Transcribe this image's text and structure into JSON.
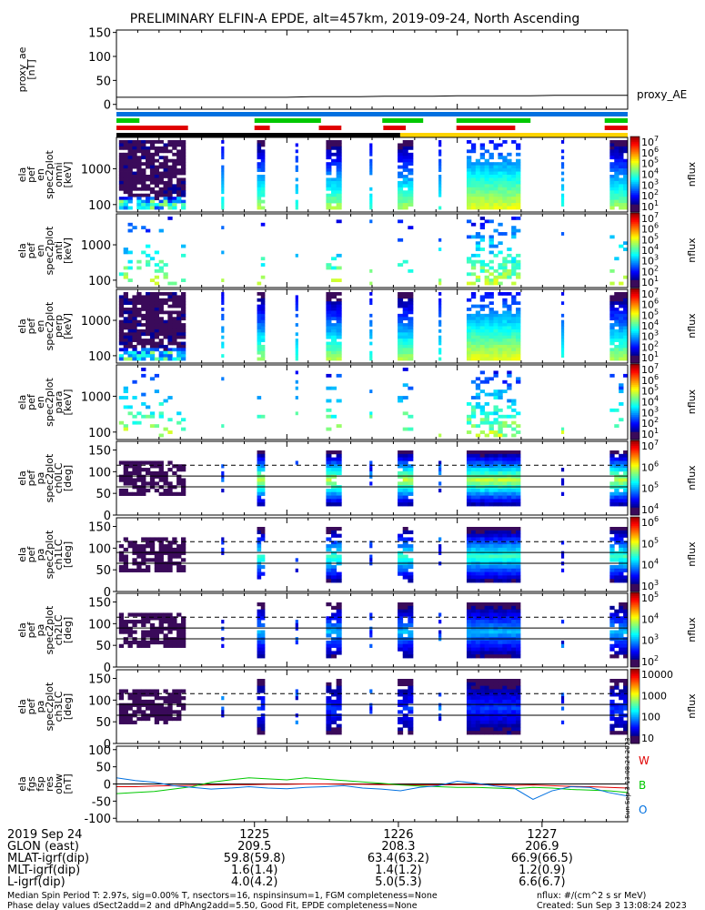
{
  "title": "PRELIMINARY ELFIN-A EPDE, alt=457km, 2019-09-24, North Ascending",
  "colors": {
    "blue": "#0070e0",
    "green": "#00c800",
    "red": "#e00000",
    "black": "#000000",
    "yellow": "#ffd400"
  },
  "chart_data": [
    {
      "type": "line",
      "name": "proxy_ae",
      "ylabel_lines": [
        "proxy_ae",
        "[nT]"
      ],
      "yticks": [
        "150",
        "100",
        "50",
        "0"
      ],
      "ylim": [
        -10,
        155
      ],
      "legend": "proxy_AE",
      "values": [
        15,
        15,
        15,
        15,
        15,
        15,
        15,
        15,
        16,
        16,
        16,
        17,
        17,
        17,
        18,
        18,
        18,
        18,
        19,
        19,
        19,
        19
      ]
    },
    {
      "type": "bars",
      "name": "status-bars",
      "rows": [
        {
          "color": "blue",
          "segments": [
            [
              0,
              1
            ]
          ]
        },
        {
          "color": "green",
          "segments": [
            [
              0,
              0.045
            ],
            [
              0.27,
              0.4
            ],
            [
              0.52,
              0.6
            ],
            [
              0.665,
              0.81
            ],
            [
              0.955,
              1
            ]
          ]
        },
        {
          "color": "red",
          "segments": [
            [
              0,
              0.14
            ],
            [
              0.27,
              0.3
            ],
            [
              0.396,
              0.44
            ],
            [
              0.522,
              0.566
            ],
            [
              0.665,
              0.78
            ],
            [
              0.955,
              1
            ]
          ]
        },
        {
          "segments": [
            [
              0,
              0.555,
              "black"
            ],
            [
              0.555,
              1,
              "yellow"
            ]
          ]
        }
      ]
    },
    {
      "type": "heatmap",
      "ylabel_lines": [
        "ela",
        "pef",
        "en",
        "spec2plot",
        "omni",
        "[keV]"
      ],
      "yticks": [
        "1000",
        "100"
      ],
      "cbar_ticks": [
        "10",
        "10",
        "10",
        "10",
        "10",
        "10",
        "10"
      ],
      "cbar_exps": [
        "7",
        "6",
        "5",
        "4",
        "3",
        "2",
        "1"
      ],
      "cbar_label": "nflux"
    },
    {
      "type": "heatmap",
      "ylabel_lines": [
        "ela",
        "pef",
        "en",
        "spec2plot",
        "anti",
        "[keV]"
      ],
      "yticks": [
        "1000",
        "100"
      ],
      "cbar_ticks": [
        "10",
        "10",
        "10",
        "10",
        "10",
        "10",
        "10"
      ],
      "cbar_exps": [
        "7",
        "6",
        "5",
        "4",
        "3",
        "2",
        "1"
      ],
      "cbar_label": "nflux"
    },
    {
      "type": "heatmap",
      "ylabel_lines": [
        "ela",
        "pef",
        "en",
        "spec2plot",
        "perp",
        "[keV]"
      ],
      "yticks": [
        "1000",
        "100"
      ],
      "cbar_ticks": [
        "10",
        "10",
        "10",
        "10",
        "10",
        "10",
        "10"
      ],
      "cbar_exps": [
        "7",
        "6",
        "5",
        "4",
        "3",
        "2",
        "1"
      ],
      "cbar_label": "nflux"
    },
    {
      "type": "heatmap",
      "ylabel_lines": [
        "ela",
        "pef",
        "en",
        "spec2plot",
        "para",
        "[keV]"
      ],
      "yticks": [
        "1000",
        "100"
      ],
      "cbar_ticks": [
        "10",
        "10",
        "10",
        "10",
        "10",
        "10",
        "10"
      ],
      "cbar_exps": [
        "7",
        "6",
        "5",
        "4",
        "3",
        "2",
        "1"
      ],
      "cbar_label": "nflux"
    },
    {
      "type": "heatmap",
      "ylabel_lines": [
        "ela",
        "pef",
        "pa",
        "spec2plot",
        "ch0LC",
        "[deg]"
      ],
      "yticks": [
        "150",
        "100",
        "50",
        "0"
      ],
      "cbar_ticks": [
        "10",
        "10",
        "10",
        "10"
      ],
      "cbar_exps": [
        "7",
        "6",
        "5",
        "4"
      ],
      "cbar_label": "nflux"
    },
    {
      "type": "heatmap",
      "ylabel_lines": [
        "ela",
        "pef",
        "pa",
        "spec2plot",
        "ch1LC",
        "[deg]"
      ],
      "yticks": [
        "150",
        "100",
        "50",
        "0"
      ],
      "cbar_ticks": [
        "10",
        "10",
        "10",
        "10"
      ],
      "cbar_exps": [
        "6",
        "5",
        "4",
        "3"
      ],
      "cbar_label": "nflux"
    },
    {
      "type": "heatmap",
      "ylabel_lines": [
        "ela",
        "pef",
        "pa",
        "spec2plot",
        "ch2LC",
        "[deg]"
      ],
      "yticks": [
        "150",
        "100",
        "50",
        "0"
      ],
      "cbar_ticks": [
        "10",
        "10",
        "10",
        "10"
      ],
      "cbar_exps": [
        "5",
        "4",
        "3",
        "2"
      ],
      "cbar_label": "nflux"
    },
    {
      "type": "heatmap",
      "ylabel_lines": [
        "ela",
        "pef",
        "pa",
        "spec2plot",
        "ch3LC",
        "[deg]"
      ],
      "yticks": [
        "150",
        "100",
        "50",
        "0"
      ],
      "cbar_ticks": [
        "10000",
        "1000",
        "100",
        "10"
      ],
      "cbar_exps": [
        "",
        "",
        "",
        ""
      ],
      "cbar_label": "nflux"
    },
    {
      "type": "line",
      "name": "fgs",
      "ylabel_lines": [
        "ela",
        "fgs",
        "fsp",
        "res",
        "obw",
        "[nT]"
      ],
      "yticks": [
        "100",
        "50",
        "0",
        "-50",
        "-100"
      ],
      "ylim": [
        -110,
        110
      ],
      "legend_labels": [
        "W",
        "B",
        "O"
      ],
      "series": [
        {
          "name": "W",
          "color": "red",
          "values": [
            -8,
            -8,
            -6,
            -5,
            -4,
            -3,
            -2,
            -2,
            -1,
            -1,
            0,
            0,
            -1,
            -1,
            -2,
            -2,
            -3,
            -3,
            -2,
            -2,
            -3,
            -4,
            -3,
            -5,
            -7,
            -8,
            -10,
            -12
          ]
        },
        {
          "name": "B",
          "color": "green",
          "values": [
            -28,
            -25,
            -22,
            -15,
            -8,
            5,
            12,
            18,
            15,
            12,
            18,
            14,
            10,
            6,
            2,
            -3,
            -6,
            -8,
            -10,
            -10,
            -12,
            -14,
            -10,
            -12,
            -16,
            -18,
            -20,
            -25
          ]
        },
        {
          "name": "O",
          "color": "blue",
          "values": [
            18,
            10,
            5,
            -5,
            -10,
            -15,
            -12,
            -8,
            -12,
            -14,
            -10,
            -8,
            -5,
            -12,
            -15,
            -20,
            -10,
            -5,
            8,
            2,
            -6,
            -12,
            -45,
            -20,
            -8,
            -10,
            -25,
            -35
          ]
        }
      ]
    }
  ],
  "footer": {
    "rows": [
      {
        "label": "2019 Sep 24",
        "values": [
          "1225",
          "1226",
          "1227"
        ]
      },
      {
        "label": "GLON (east)",
        "values": [
          "209.5",
          "208.3",
          "206.9"
        ]
      },
      {
        "label": "MLAT-igrf(dip)",
        "values": [
          "59.8(59.8)",
          "63.4(63.2)",
          "66.9(66.5)"
        ]
      },
      {
        "label": "MLT-igrf(dip)",
        "values": [
          "1.6(1.4)",
          "1.4(1.2)",
          "1.2(0.9)"
        ]
      },
      {
        "label": "L-igrf(dip)",
        "values": [
          "4.0(4.2)",
          "5.0(5.3)",
          "6.6(6.7)"
        ]
      }
    ],
    "note1": "Median Spin Period T: 2.97s, sig=0.00% T, nsectors=16, nspinsinsum=1, FGM completeness=None",
    "note2": "Phase delay values dSect2add=2 and dPhAng2add=5.50, Good Fit, EPDE completeness=None",
    "units": "nflux: #/(cm^2 s sr MeV)",
    "created": "Created: Sun Sep  3 13:08:24 2023",
    "side_stamp": "Sun Sep  3 13:08:24 2023"
  }
}
